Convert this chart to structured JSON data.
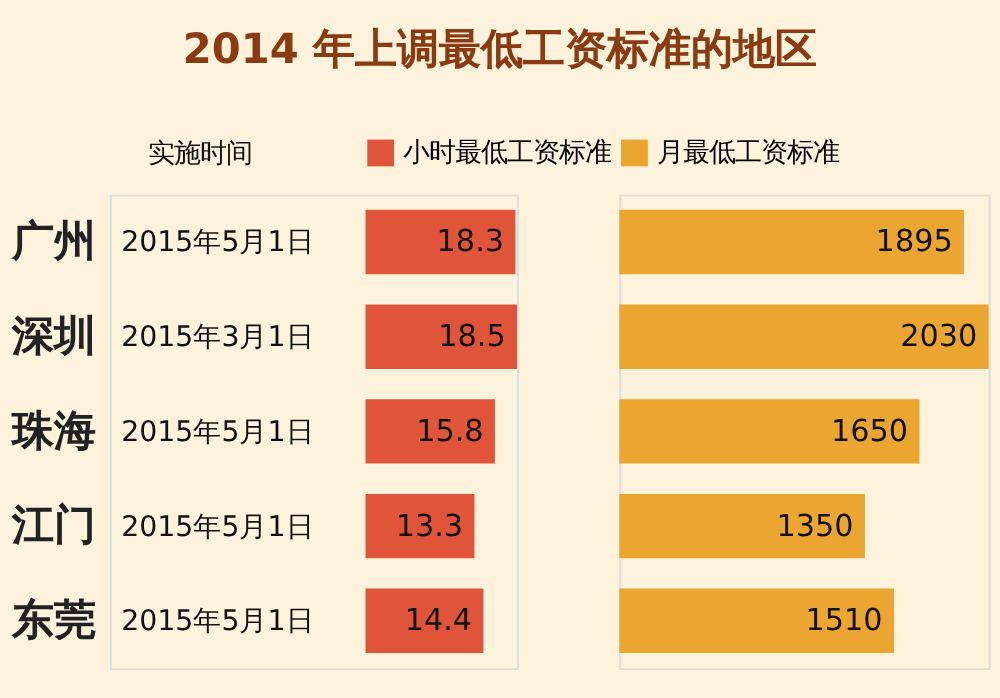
{
  "chart_data": [
    {
      "type": "bar",
      "orientation": "horizontal",
      "title": "2014 年上调最低工资标准的地区",
      "categories": [
        "广州",
        "深圳",
        "珠海",
        "江门",
        "东莞"
      ],
      "series": [
        {
          "name": "小时最低工资标准",
          "color": "#e0553a",
          "values": [
            18.3,
            18.5,
            15.8,
            13.3,
            14.4
          ]
        }
      ],
      "data_labels": true,
      "legend": "top",
      "annotations": [
        "实施时间",
        "2015年5月1日",
        "2015年3月1日",
        "2015年5月1日",
        "2015年5月1日",
        "2015年5月1日"
      ]
    },
    {
      "type": "bar",
      "orientation": "horizontal",
      "categories": [
        null,
        null,
        null,
        null,
        null
      ],
      "series": [
        {
          "name": "月最低工资标准",
          "color": "#eaa630",
          "values": [
            1895,
            2030,
            1650,
            1350,
            1510
          ]
        }
      ],
      "data_labels": true,
      "legend": "top"
    }
  ]
}
